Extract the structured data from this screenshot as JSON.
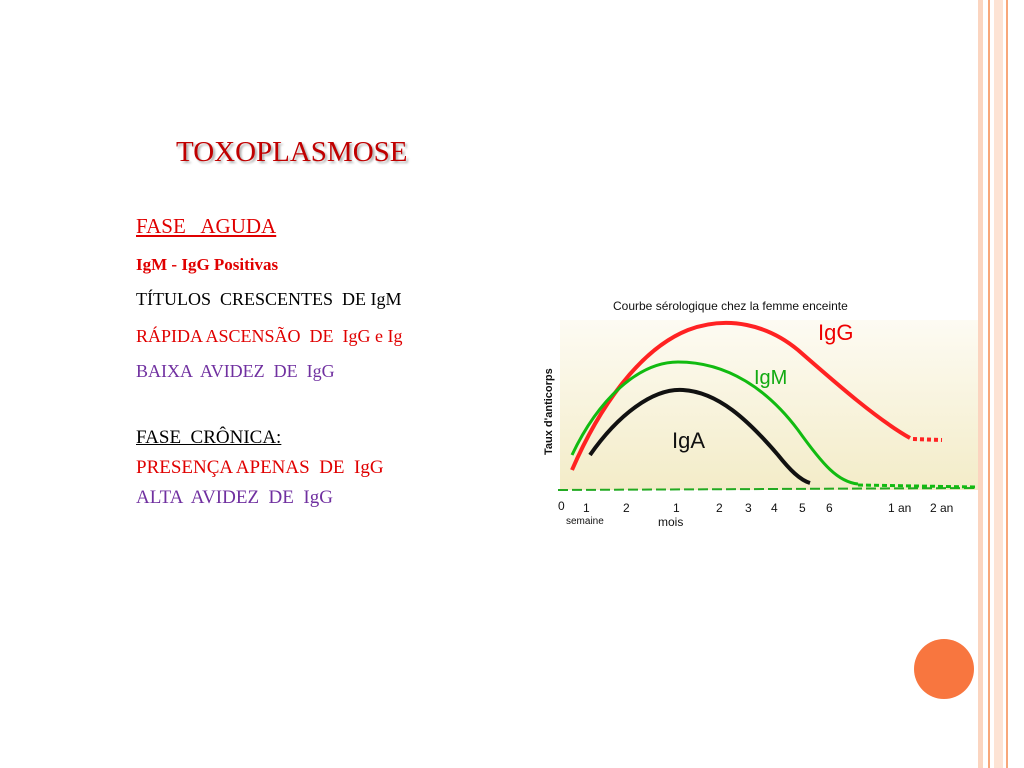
{
  "title": "TOXOPLASMOSE",
  "acute": {
    "heading": "FASE   AGUDA",
    "lines": [
      "IgM - IgG Positivas",
      "TÍTULOS  CRESCENTES  DE IgM",
      "RÁPIDA ASCENSÃO  DE  IgG e Ig",
      "BAIXA  AVIDEZ  DE  IgG"
    ]
  },
  "chronic": {
    "heading": "FASE  CRÔNICA:",
    "lines": [
      "PRESENÇA APENAS  DE  IgG",
      "ALTA  AVIDEZ  DE  IgG"
    ]
  },
  "figure": {
    "title": "Courbe sérologique chez la femme enceinte",
    "y_label": "Taux d'anticorps",
    "curve_labels": [
      "IgG",
      "IgM",
      "IgA"
    ],
    "x_labels": [
      "0",
      "1",
      "2",
      "1",
      "2",
      "3",
      "4",
      "5",
      "6",
      "1 an",
      "2 an"
    ],
    "x_units": [
      "semaine",
      "mois"
    ]
  }
}
